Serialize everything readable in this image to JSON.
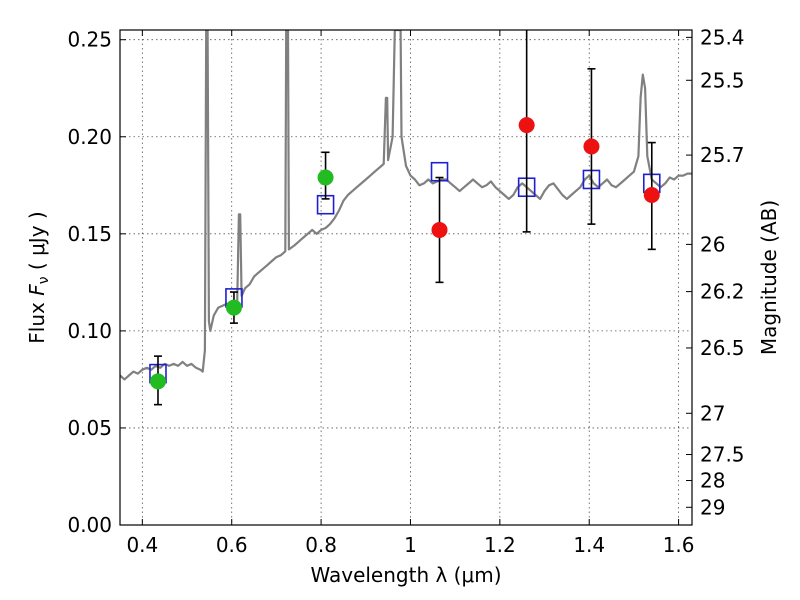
{
  "chart_data": {
    "type": "scatter",
    "title": "",
    "xlabel": "Wavelength  λ (μm)",
    "ylabel": "Flux  F_ν  ( μJy )",
    "ylabel_parts": {
      "prefix": "Flux  ",
      "symbol": "F",
      "subscript": "ν",
      "unit": "  ( μJy )"
    },
    "y2label": "Magnitude (AB)",
    "xlim": [
      0.35,
      1.63
    ],
    "ylim": [
      0.0,
      0.255
    ],
    "grid": true,
    "x_ticks": [
      {
        "value": 0.4,
        "label": "0.4"
      },
      {
        "value": 0.6,
        "label": "0.6"
      },
      {
        "value": 0.8,
        "label": "0.8"
      },
      {
        "value": 1.0,
        "label": "1"
      },
      {
        "value": 1.2,
        "label": "1.2"
      },
      {
        "value": 1.4,
        "label": "1.4"
      },
      {
        "value": 1.6,
        "label": "1.6"
      }
    ],
    "y_ticks": [
      {
        "value": 0.0,
        "label": "0.00"
      },
      {
        "value": 0.05,
        "label": "0.05"
      },
      {
        "value": 0.1,
        "label": "0.10"
      },
      {
        "value": 0.15,
        "label": "0.15"
      },
      {
        "value": 0.2,
        "label": "0.20"
      },
      {
        "value": 0.25,
        "label": "0.25"
      }
    ],
    "y2_ticks": [
      {
        "mag": 25.4,
        "label": "25.4"
      },
      {
        "mag": 25.5,
        "label": "25.5"
      },
      {
        "mag": 25.7,
        "label": "25.7"
      },
      {
        "mag": 26,
        "label": "26"
      },
      {
        "mag": 26.2,
        "label": "26.2"
      },
      {
        "mag": 26.5,
        "label": "26.5"
      },
      {
        "mag": 27,
        "label": "27"
      },
      {
        "mag": 27.5,
        "label": "27.5"
      },
      {
        "mag": 28,
        "label": "28"
      },
      {
        "mag": 29,
        "label": "29"
      }
    ],
    "series": [
      {
        "kind": "line",
        "color": "#808080",
        "points": [
          [
            0.35,
            0.077
          ],
          [
            0.36,
            0.075
          ],
          [
            0.37,
            0.077
          ],
          [
            0.38,
            0.079
          ],
          [
            0.39,
            0.078
          ],
          [
            0.4,
            0.08
          ],
          [
            0.41,
            0.081
          ],
          [
            0.42,
            0.08
          ],
          [
            0.43,
            0.082
          ],
          [
            0.44,
            0.081
          ],
          [
            0.45,
            0.083
          ],
          [
            0.46,
            0.082
          ],
          [
            0.47,
            0.083
          ],
          [
            0.48,
            0.082
          ],
          [
            0.49,
            0.084
          ],
          [
            0.5,
            0.082
          ],
          [
            0.51,
            0.083
          ],
          [
            0.52,
            0.081
          ],
          [
            0.53,
            0.08
          ],
          [
            0.535,
            0.079
          ],
          [
            0.54,
            0.09
          ],
          [
            0.543,
            0.255
          ],
          [
            0.546,
            0.255
          ],
          [
            0.549,
            0.105
          ],
          [
            0.552,
            0.1
          ],
          [
            0.56,
            0.108
          ],
          [
            0.57,
            0.112
          ],
          [
            0.58,
            0.113
          ],
          [
            0.59,
            0.114
          ],
          [
            0.598,
            0.11
          ],
          [
            0.603,
            0.113
          ],
          [
            0.607,
            0.11
          ],
          [
            0.612,
            0.112
          ],
          [
            0.616,
            0.16
          ],
          [
            0.619,
            0.16
          ],
          [
            0.622,
            0.118
          ],
          [
            0.63,
            0.122
          ],
          [
            0.64,
            0.124
          ],
          [
            0.65,
            0.128
          ],
          [
            0.66,
            0.13
          ],
          [
            0.67,
            0.132
          ],
          [
            0.68,
            0.134
          ],
          [
            0.69,
            0.136
          ],
          [
            0.7,
            0.138
          ],
          [
            0.71,
            0.139
          ],
          [
            0.72,
            0.141
          ],
          [
            0.722,
            0.255
          ],
          [
            0.726,
            0.255
          ],
          [
            0.728,
            0.142
          ],
          [
            0.74,
            0.144
          ],
          [
            0.75,
            0.146
          ],
          [
            0.76,
            0.148
          ],
          [
            0.77,
            0.15
          ],
          [
            0.78,
            0.152
          ],
          [
            0.79,
            0.15
          ],
          [
            0.8,
            0.152
          ],
          [
            0.81,
            0.153
          ],
          [
            0.82,
            0.155
          ],
          [
            0.83,
            0.158
          ],
          [
            0.84,
            0.162
          ],
          [
            0.85,
            0.167
          ],
          [
            0.86,
            0.17
          ],
          [
            0.87,
            0.172
          ],
          [
            0.88,
            0.174
          ],
          [
            0.89,
            0.176
          ],
          [
            0.9,
            0.178
          ],
          [
            0.91,
            0.18
          ],
          [
            0.92,
            0.182
          ],
          [
            0.93,
            0.184
          ],
          [
            0.94,
            0.186
          ],
          [
            0.945,
            0.22
          ],
          [
            0.948,
            0.22
          ],
          [
            0.95,
            0.188
          ],
          [
            0.96,
            0.2
          ],
          [
            0.965,
            0.255
          ],
          [
            0.968,
            0.255
          ],
          [
            0.975,
            0.255
          ],
          [
            0.978,
            0.255
          ],
          [
            0.98,
            0.2
          ],
          [
            0.99,
            0.185
          ],
          [
            1.0,
            0.18
          ],
          [
            1.01,
            0.178
          ],
          [
            1.02,
            0.175
          ],
          [
            1.03,
            0.176
          ],
          [
            1.04,
            0.178
          ],
          [
            1.05,
            0.176
          ],
          [
            1.06,
            0.177
          ],
          [
            1.07,
            0.178
          ],
          [
            1.08,
            0.178
          ],
          [
            1.09,
            0.176
          ],
          [
            1.1,
            0.174
          ],
          [
            1.11,
            0.172
          ],
          [
            1.12,
            0.174
          ],
          [
            1.13,
            0.176
          ],
          [
            1.14,
            0.178
          ],
          [
            1.15,
            0.176
          ],
          [
            1.16,
            0.174
          ],
          [
            1.17,
            0.175
          ],
          [
            1.18,
            0.177
          ],
          [
            1.19,
            0.174
          ],
          [
            1.2,
            0.172
          ],
          [
            1.21,
            0.17
          ],
          [
            1.22,
            0.168
          ],
          [
            1.23,
            0.17
          ],
          [
            1.24,
            0.174
          ],
          [
            1.25,
            0.176
          ],
          [
            1.26,
            0.174
          ],
          [
            1.27,
            0.172
          ],
          [
            1.28,
            0.17
          ],
          [
            1.29,
            0.168
          ],
          [
            1.3,
            0.172
          ],
          [
            1.31,
            0.175
          ],
          [
            1.32,
            0.176
          ],
          [
            1.33,
            0.173
          ],
          [
            1.34,
            0.17
          ],
          [
            1.35,
            0.168
          ],
          [
            1.36,
            0.17
          ],
          [
            1.37,
            0.172
          ],
          [
            1.38,
            0.174
          ],
          [
            1.39,
            0.178
          ],
          [
            1.4,
            0.18
          ],
          [
            1.41,
            0.176
          ],
          [
            1.42,
            0.174
          ],
          [
            1.43,
            0.176
          ],
          [
            1.44,
            0.178
          ],
          [
            1.45,
            0.175
          ],
          [
            1.46,
            0.174
          ],
          [
            1.47,
            0.176
          ],
          [
            1.48,
            0.178
          ],
          [
            1.49,
            0.18
          ],
          [
            1.5,
            0.182
          ],
          [
            1.51,
            0.19
          ],
          [
            1.515,
            0.22
          ],
          [
            1.52,
            0.232
          ],
          [
            1.525,
            0.225
          ],
          [
            1.53,
            0.19
          ],
          [
            1.54,
            0.178
          ],
          [
            1.55,
            0.176
          ],
          [
            1.56,
            0.174
          ],
          [
            1.57,
            0.176
          ],
          [
            1.58,
            0.179
          ],
          [
            1.59,
            0.178
          ],
          [
            1.6,
            0.18
          ],
          [
            1.61,
            0.18
          ],
          [
            1.62,
            0.181
          ],
          [
            1.63,
            0.181
          ]
        ]
      },
      {
        "kind": "square",
        "color": "#1f1fd1",
        "points": [
          [
            0.435,
            0.078
          ],
          [
            0.605,
            0.117
          ],
          [
            0.81,
            0.165
          ],
          [
            1.065,
            0.182
          ],
          [
            1.26,
            0.174
          ],
          [
            1.405,
            0.178
          ],
          [
            1.54,
            0.176
          ]
        ]
      },
      {
        "kind": "dot",
        "color": "#22bb22",
        "points": [
          [
            0.435,
            0.074
          ],
          [
            0.605,
            0.112
          ],
          [
            0.81,
            0.179
          ]
        ]
      },
      {
        "kind": "dot",
        "color": "#ee1111",
        "points": [
          [
            1.065,
            0.152
          ],
          [
            1.26,
            0.206
          ],
          [
            1.405,
            0.195
          ],
          [
            1.54,
            0.17
          ]
        ]
      },
      {
        "kind": "errorbar",
        "color": "#000000",
        "points": [
          {
            "x": 0.435,
            "y": 0.074,
            "low": 0.062,
            "high": 0.087
          },
          {
            "x": 0.605,
            "y": 0.112,
            "low": 0.104,
            "high": 0.12
          },
          {
            "x": 0.81,
            "y": 0.179,
            "low": 0.168,
            "high": 0.192
          },
          {
            "x": 1.065,
            "y": 0.152,
            "low": 0.125,
            "high": 0.179
          },
          {
            "x": 1.26,
            "y": 0.206,
            "low": 0.151,
            "high": 0.262
          },
          {
            "x": 1.405,
            "y": 0.195,
            "low": 0.155,
            "high": 0.235
          },
          {
            "x": 1.54,
            "y": 0.17,
            "low": 0.142,
            "high": 0.197
          }
        ]
      }
    ]
  }
}
